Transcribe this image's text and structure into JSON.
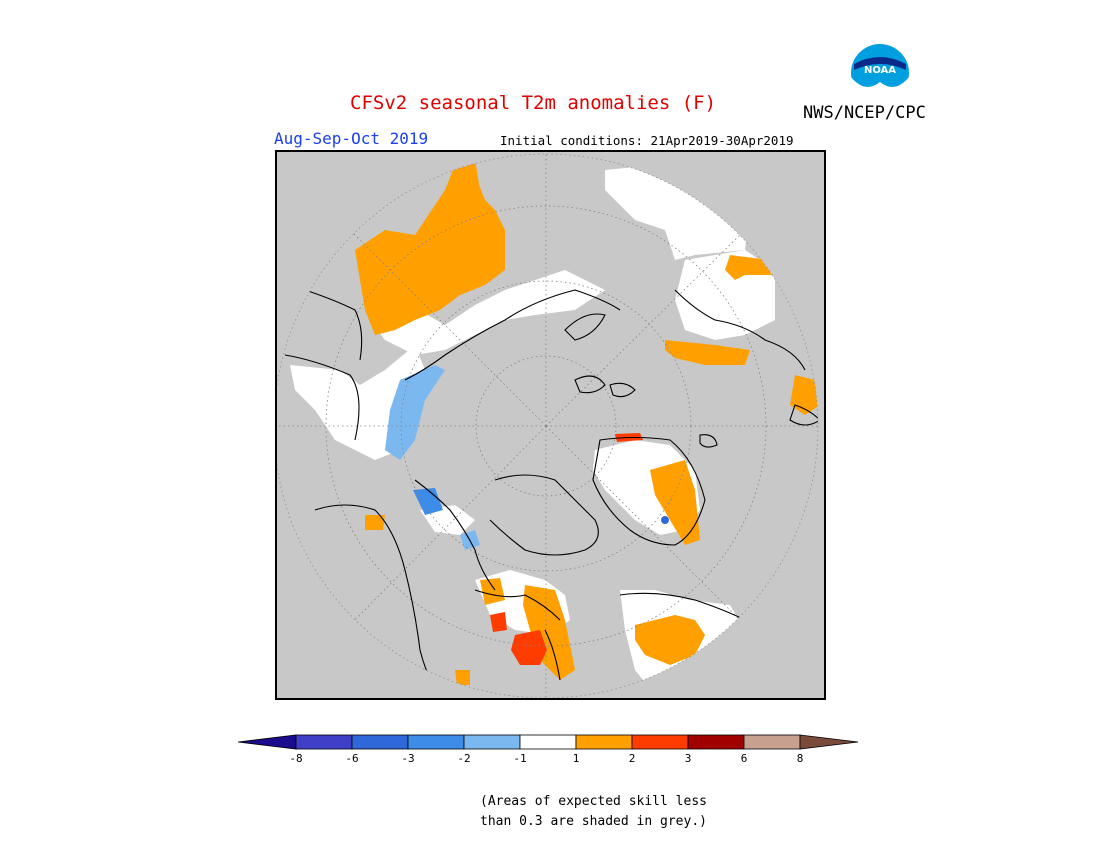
{
  "header": {
    "title": "CFSv2 seasonal T2m anomalies (F)",
    "organization": "NWS/NCEP/CPC",
    "logo_text": "NOAA",
    "season": "Aug-Sep-Oct 2019",
    "initial_conditions": "Initial conditions: 21Apr2019-30Apr2019"
  },
  "legend": {
    "tick_labels": [
      "-8",
      "-6",
      "-3",
      "-2",
      "-1",
      "1",
      "2",
      "3",
      "6",
      "8"
    ],
    "colors": [
      "#1a0c8c",
      "#3f3fc8",
      "#2f68d8",
      "#3c8ce8",
      "#7cb8f0",
      "#ffffff",
      "#ffa000",
      "#ff3c00",
      "#a00000",
      "#c8a090",
      "#7a4a3a"
    ]
  },
  "colors": {
    "skill_mask": "#c8c8c8",
    "title_red": "#e00000",
    "season_blue": "#1a3ff0"
  },
  "footnote": {
    "line1": "(Areas of expected skill less",
    "line2": "than 0.3 are shaded in grey.)"
  }
}
